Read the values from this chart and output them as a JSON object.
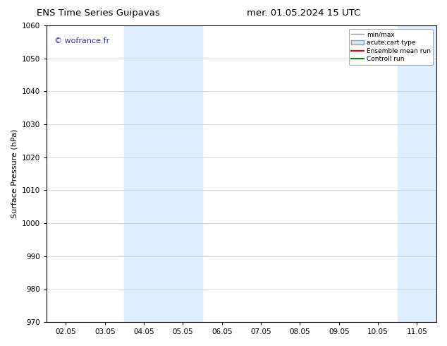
{
  "title_left": "ENS Time Series Guipavas",
  "title_right": "mer. 01.05.2024 15 UTC",
  "ylabel": "Surface Pressure (hPa)",
  "ylim": [
    970,
    1060
  ],
  "yticks": [
    970,
    980,
    990,
    1000,
    1010,
    1020,
    1030,
    1040,
    1050,
    1060
  ],
  "xtick_labels": [
    "02.05",
    "03.05",
    "04.05",
    "05.05",
    "06.05",
    "07.05",
    "08.05",
    "09.05",
    "10.05",
    "11.05"
  ],
  "n_ticks": 10,
  "shaded_bands": [
    {
      "xmin": 2,
      "xmax": 4,
      "color": "#ddeeff"
    },
    {
      "xmin": 9,
      "xmax": 11,
      "color": "#ddeeff"
    }
  ],
  "watermark_text": "© wofrance.fr",
  "watermark_color": "#3333cc",
  "legend_entries": [
    {
      "label": "min/max",
      "type": "line",
      "color": "#999999",
      "lw": 1.0
    },
    {
      "label": "acute;cart type",
      "type": "patch",
      "facecolor": "#d0e8f8",
      "edgecolor": "#999999"
    },
    {
      "label": "Ensemble mean run",
      "type": "line",
      "color": "#ff0000",
      "lw": 1.5
    },
    {
      "label": "Controll run",
      "type": "line",
      "color": "#008800",
      "lw": 1.5
    }
  ],
  "bg_color": "#ffffff",
  "grid_color": "#cccccc",
  "title_fontsize": 9.5,
  "label_fontsize": 8,
  "tick_fontsize": 7.5,
  "watermark_fontsize": 8
}
